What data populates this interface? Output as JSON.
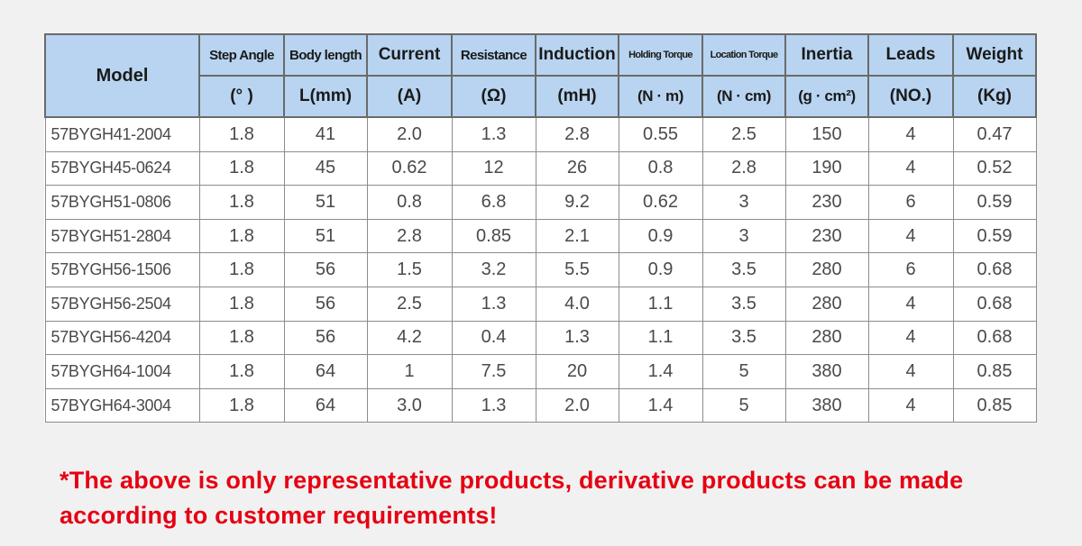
{
  "table": {
    "model_header": "Model",
    "headers": [
      {
        "name": "Step Angle",
        "unit": "(° )"
      },
      {
        "name": "Body length",
        "unit": "L(mm)"
      },
      {
        "name": "Current",
        "unit": "(A)"
      },
      {
        "name": "Resistance",
        "unit": "(Ω)"
      },
      {
        "name": "Induction",
        "unit": "(mH)"
      },
      {
        "name": "Holding Torque",
        "unit": "(N · m)"
      },
      {
        "name": "Location Torque",
        "unit": "(N · cm)"
      },
      {
        "name": "Inertia",
        "unit": "(g · cm²)"
      },
      {
        "name": "Leads",
        "unit": "(NO.)"
      },
      {
        "name": "Weight",
        "unit": "(Kg)"
      }
    ],
    "rows": [
      [
        "57BYGH41-2004",
        "1.8",
        "41",
        "2.0",
        "1.3",
        "2.8",
        "0.55",
        "2.5",
        "150",
        "4",
        "0.47"
      ],
      [
        "57BYGH45-0624",
        "1.8",
        "45",
        "0.62",
        "12",
        "26",
        "0.8",
        "2.8",
        "190",
        "4",
        "0.52"
      ],
      [
        "57BYGH51-0806",
        "1.8",
        "51",
        "0.8",
        "6.8",
        "9.2",
        "0.62",
        "3",
        "230",
        "6",
        "0.59"
      ],
      [
        "57BYGH51-2804",
        "1.8",
        "51",
        "2.8",
        "0.85",
        "2.1",
        "0.9",
        "3",
        "230",
        "4",
        "0.59"
      ],
      [
        "57BYGH56-1506",
        "1.8",
        "56",
        "1.5",
        "3.2",
        "5.5",
        "0.9",
        "3.5",
        "280",
        "6",
        "0.68"
      ],
      [
        "57BYGH56-2504",
        "1.8",
        "56",
        "2.5",
        "1.3",
        "4.0",
        "1.1",
        "3.5",
        "280",
        "4",
        "0.68"
      ],
      [
        "57BYGH56-4204",
        "1.8",
        "56",
        "4.2",
        "0.4",
        "1.3",
        "1.1",
        "3.5",
        "280",
        "4",
        "0.68"
      ],
      [
        "57BYGH64-1004",
        "1.8",
        "64",
        "1",
        "7.5",
        "20",
        "1.4",
        "5",
        "380",
        "4",
        "0.85"
      ],
      [
        "57BYGH64-3004",
        "1.8",
        "64",
        "3.0",
        "1.3",
        "2.0",
        "1.4",
        "5",
        "380",
        "4",
        "0.85"
      ]
    ]
  },
  "note": {
    "line1": "*The above is only representative products, derivative products can be made",
    "line2": "according to customer requirements!"
  },
  "colors": {
    "header_bg": "#b8d4f0",
    "note_text": "#e60012"
  }
}
